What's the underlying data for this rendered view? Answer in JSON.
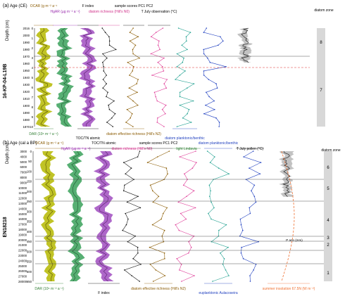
{
  "panels": [
    {
      "label": "(a)",
      "core": "16-KP-04-L19B",
      "left_axis_title": "Age (CE)",
      "depth_title": "Depth (cm)",
      "age_ticks": [
        "2016",
        "2000",
        "1990",
        "1980",
        "1970",
        "1960",
        "1950",
        "1940",
        "1930",
        "1920",
        "1910",
        "1900",
        "1890",
        "1880",
        "1870"
      ],
      "depth_ticks": [
        "0",
        "1",
        "2",
        "3",
        "4",
        "5",
        "6",
        "7",
        "8",
        "9",
        "10"
      ],
      "zone_title": "diatom zone",
      "zones": [
        "8",
        "7"
      ],
      "top_labels": [
        {
          "text": "OCAR (g m⁻² a⁻¹",
          "color": "#8a5a00"
        },
        {
          "text": "HgAR (µg m⁻² a⁻¹)",
          "color": "#9b2fae"
        },
        {
          "text": "F index",
          "color": "#000000"
        },
        {
          "text": "diatom richness (Hill's N0)",
          "color": "#d0308a"
        },
        {
          "text": "sample scores PC1 PC2",
          "color": "#000000"
        },
        {
          "text": "T July observation (°C)",
          "color": "#000000"
        }
      ],
      "bottom_labels": [
        {
          "text": "DAR (10⁶ m⁻² a⁻¹)",
          "color": "#2e7d32"
        },
        {
          "text": "TOC/TN atomic",
          "color": "#000000"
        },
        {
          "text": "diatom effective richness (Hill's N2)",
          "color": "#8a5a00"
        },
        {
          "text": "diatom planktonic/benthic",
          "color": "#1f3fbf"
        }
      ]
    },
    {
      "label": "(b)",
      "core": "EN18218",
      "left_axis_title": "Age (cal a BP)",
      "depth_title": "Depth (cm)",
      "age_ticks": [
        "3000",
        "4000",
        "5000",
        "6000",
        "7000",
        "8000",
        "9000",
        "10000",
        "11000",
        "12000",
        "13000",
        "14000",
        "15000",
        "16000",
        "17000",
        "18000",
        "19000",
        "20000",
        "21000",
        "22000",
        "23000",
        "24000",
        "25000",
        "26000",
        "27000",
        "28000"
      ],
      "depth_ticks": [
        "0",
        "50",
        "100",
        "150",
        "200",
        "250",
        "300",
        "350",
        "400",
        "450",
        "500",
        "550",
        "600",
        "650"
      ],
      "zone_title": "diatom zone",
      "zones": [
        "6",
        "5",
        "4",
        "3",
        "2",
        "1"
      ],
      "top_labels": [
        {
          "text": "OCAR (g m⁻² a⁻¹)",
          "color": "#8a5a00"
        },
        {
          "text": "HgAR (µg m⁻² a⁻¹)",
          "color": "#9b2fae"
        },
        {
          "text": "TOC/TN atomic",
          "color": "#000000"
        },
        {
          "text": "diatom richness (Hill's N0)",
          "color": "#d0308a"
        },
        {
          "text": "sample scores PC1 PC2",
          "color": "#000000"
        },
        {
          "text": "light Lindavia",
          "color": "#2e7d32"
        },
        {
          "text": "diatom planktonic/benthic",
          "color": "#1f3fbf"
        },
        {
          "text": "T July pollen (°C)",
          "color": "#000000"
        }
      ],
      "bottom_labels": [
        {
          "text": "DAR (10⁶ m⁻² a⁻¹)",
          "color": "#2e7d32"
        },
        {
          "text": "F index",
          "color": "#000000"
        },
        {
          "text": "diatom effective richness (Hill's N2)",
          "color": "#8a5a00"
        },
        {
          "text": "euplanktonic Aulacoseira",
          "color": "#1f3fbf"
        },
        {
          "text": "summer insolation 67.5N (W m⁻²)",
          "color": "#f07030"
        }
      ],
      "pann_label": "P ann (mm)"
    }
  ],
  "colors": {
    "ocar": "#b5b800",
    "ocar_line": "#5a5200",
    "dar": "#3aa15a",
    "hgar": "#a04cc0",
    "black": "#111111",
    "brown": "#8a5a00",
    "pink": "#e0409a",
    "teal": "#20a090",
    "blue": "#2040c0",
    "orange": "#f07030",
    "zone_fill": "#d8d8d8",
    "dashed_red": "#e03030"
  },
  "chart_data": [
    {
      "type": "line",
      "panel": "(a)",
      "x_depth_cm": [
        0,
        1,
        2,
        3,
        4,
        5,
        6,
        7,
        8,
        9,
        10
      ],
      "series": [
        {
          "name": "OCAR",
          "values": [
            8,
            7,
            6,
            5,
            6,
            8,
            9,
            8,
            7,
            6,
            7
          ]
        },
        {
          "name": "DAR",
          "values": [
            120,
            140,
            160,
            150,
            130,
            120,
            110,
            100,
            120,
            130,
            140
          ]
        },
        {
          "name": "HgAR",
          "values": [
            600,
            700,
            800,
            850,
            900,
            800,
            700,
            650,
            600,
            650,
            700
          ]
        },
        {
          "name": "TOC/TN",
          "values": [
            10.0,
            10.4,
            10.8,
            10.2,
            10.6,
            11.0,
            10.4,
            10.8,
            10.2,
            10.6,
            10.8
          ]
        },
        {
          "name": "F index",
          "values": [
            0.88,
            0.9,
            0.87,
            0.9,
            0.88,
            0.86,
            0.9,
            0.88,
            0.9,
            0.87,
            0.89
          ]
        },
        {
          "name": "N0",
          "values": [
            40,
            36,
            32,
            44,
            38,
            34,
            40,
            42,
            36,
            38,
            40
          ]
        },
        {
          "name": "N2",
          "values": [
            5,
            4,
            6,
            5,
            4,
            6,
            5,
            4,
            6,
            5,
            5
          ]
        },
        {
          "name": "PC1",
          "values": [
            2,
            3,
            2,
            1,
            0,
            -1,
            0,
            1,
            0,
            -1,
            0
          ]
        },
        {
          "name": "planktonic/benthic",
          "values": [
            0.8,
            0.6,
            0.4,
            0.3,
            0.3,
            0.2,
            0.3,
            0.2,
            0.3,
            0.2,
            0.2
          ]
        }
      ]
    },
    {
      "type": "line",
      "panel": "(b)",
      "x_depth_cm": [
        0,
        50,
        100,
        150,
        200,
        250,
        300,
        350,
        400,
        450,
        500,
        550,
        600,
        650
      ],
      "series": [
        {
          "name": "OCAR",
          "values": [
            1.0,
            0.9,
            1.2,
            1.0,
            0.8,
            1.1,
            0.9,
            0.7,
            0.8,
            1.0,
            0.9,
            0.8,
            1.0,
            0.9
          ]
        },
        {
          "name": "DAR",
          "values": [
            200,
            180,
            220,
            190,
            170,
            210,
            180,
            160,
            180,
            200,
            190,
            170,
            180,
            190
          ]
        },
        {
          "name": "HgAR",
          "values": [
            800,
            900,
            700,
            600,
            650,
            700,
            800,
            750,
            600,
            650,
            700,
            650,
            700,
            750
          ]
        },
        {
          "name": "TOC/TN",
          "values": [
            10,
            11,
            12,
            12,
            11,
            10,
            9,
            10,
            9,
            8,
            9,
            8,
            9,
            8
          ]
        },
        {
          "name": "N0",
          "values": [
            80,
            70,
            90,
            75,
            65,
            80,
            60,
            70,
            60,
            55,
            60,
            50,
            55,
            50
          ]
        },
        {
          "name": "N2",
          "values": [
            20,
            18,
            22,
            16,
            14,
            18,
            12,
            14,
            12,
            10,
            12,
            10,
            11,
            10
          ]
        },
        {
          "name": "light Lindavia",
          "values": [
            30,
            35,
            40,
            30,
            25,
            20,
            10,
            15,
            10,
            5,
            10,
            5,
            8,
            6
          ]
        },
        {
          "name": "planktonic/benthic",
          "values": [
            20,
            15,
            30,
            20,
            15,
            10,
            5,
            8,
            5,
            3,
            5,
            3,
            4,
            3
          ]
        },
        {
          "name": "T July pollen",
          "values": [
            12,
            13,
            14,
            13,
            12,
            11,
            10,
            11,
            10,
            9,
            9,
            9,
            9,
            9
          ]
        },
        {
          "name": "summer insolation",
          "values": [
            470,
            480,
            500,
            520,
            530,
            540,
            535,
            520,
            500,
            485,
            470,
            460,
            455,
            450
          ]
        }
      ]
    }
  ]
}
